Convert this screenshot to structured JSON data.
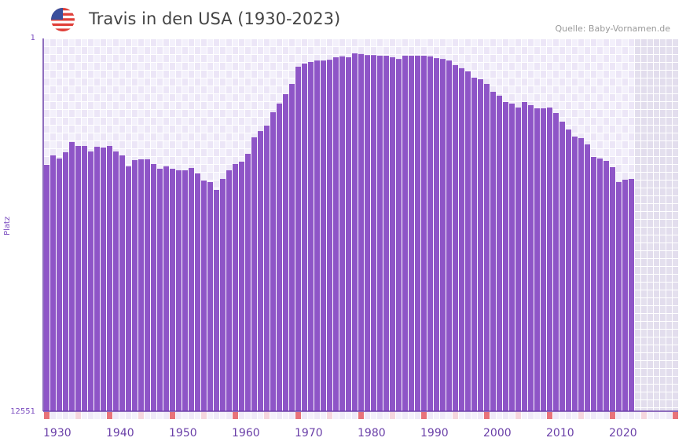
{
  "header": {
    "title": "Travis in den USA (1930-2023)",
    "source": "Quelle: Baby-Vornamen.de",
    "flag_icon": "us-flag-icon"
  },
  "colors": {
    "bar": "#8e55c7",
    "marker_decade": "#e8737a",
    "marker_mid": "#f5d6de",
    "grid_a": "#f3f0fb",
    "grid_b": "#ece6f7",
    "future": "#e4e0ee",
    "axis": "#6a3fa8"
  },
  "chart_data": {
    "type": "bar",
    "title": "Travis in den USA (1930-2023)",
    "ylabel": "Platz",
    "xlabel": "",
    "y_axis_labels": {
      "top": "1",
      "bottom": "12551"
    },
    "ylim": [
      1,
      12551
    ],
    "y_inverted": true,
    "x_range": [
      1930,
      2030
    ],
    "x_ticks": [
      "1930",
      "1940",
      "1950",
      "1960",
      "1970",
      "1980",
      "1990",
      "2000",
      "2010",
      "2020"
    ],
    "years": [
      1930,
      1931,
      1932,
      1933,
      1934,
      1935,
      1936,
      1937,
      1938,
      1939,
      1940,
      1941,
      1942,
      1943,
      1944,
      1945,
      1946,
      1947,
      1948,
      1949,
      1950,
      1951,
      1952,
      1953,
      1954,
      1955,
      1956,
      1957,
      1958,
      1959,
      1960,
      1961,
      1962,
      1963,
      1964,
      1965,
      1966,
      1967,
      1968,
      1969,
      1970,
      1971,
      1972,
      1973,
      1974,
      1975,
      1976,
      1977,
      1978,
      1979,
      1980,
      1981,
      1982,
      1983,
      1984,
      1985,
      1986,
      1987,
      1988,
      1989,
      1990,
      1991,
      1992,
      1993,
      1994,
      1995,
      1996,
      1997,
      1998,
      1999,
      2000,
      2001,
      2002,
      2003,
      2004,
      2005,
      2006,
      2007,
      2008,
      2009,
      2010,
      2011,
      2012,
      2013,
      2014,
      2015,
      2016,
      2017,
      2018,
      2019,
      2020,
      2021,
      2022,
      2023
    ],
    "ranks": [
      1442,
      1235,
      1302,
      1170,
      969,
      1044,
      1044,
      1154,
      1059,
      1075,
      1044,
      1154,
      1235,
      1478,
      1337,
      1319,
      1319,
      1424,
      1533,
      1478,
      1533,
      1570,
      1570,
      1515,
      1646,
      1823,
      1863,
      2072,
      1782,
      1570,
      1424,
      1371,
      1202,
      883,
      775,
      685,
      492,
      383,
      280,
      187,
      72,
      57,
      50,
      44,
      44,
      41,
      32,
      29,
      32,
      20,
      22,
      25,
      25,
      27,
      27,
      32,
      38,
      27,
      27,
      27,
      27,
      29,
      35,
      38,
      44,
      64,
      80,
      98,
      139,
      150,
      187,
      257,
      296,
      365,
      383,
      431,
      365,
      402,
      441,
      441,
      431,
      502,
      625,
      749,
      869,
      897,
      1014,
      1268,
      1302,
      1354,
      1496,
      1863,
      1802,
      1782
    ]
  }
}
